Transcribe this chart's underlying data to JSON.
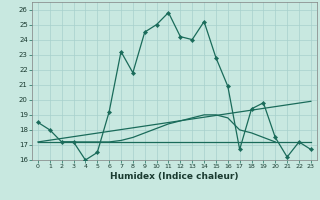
{
  "xlabel": "Humidex (Indice chaleur)",
  "bg_color": "#c8e8e0",
  "grid_color": "#a8d0cc",
  "line_color": "#1a6b5a",
  "xlim": [
    -0.5,
    23.5
  ],
  "ylim": [
    16,
    26.5
  ],
  "xticks": [
    0,
    1,
    2,
    3,
    4,
    5,
    6,
    7,
    8,
    9,
    10,
    11,
    12,
    13,
    14,
    15,
    16,
    17,
    18,
    19,
    20,
    21,
    22,
    23
  ],
  "yticks": [
    16,
    17,
    18,
    19,
    20,
    21,
    22,
    23,
    24,
    25,
    26
  ],
  "line1_x": [
    0,
    1,
    2,
    3,
    4,
    5,
    6,
    7,
    8,
    9,
    10,
    11,
    12,
    13,
    14,
    15,
    16,
    17,
    18,
    19,
    20,
    21,
    22,
    23
  ],
  "line1_y": [
    18.5,
    18.0,
    17.2,
    17.2,
    16.0,
    16.5,
    19.2,
    23.2,
    21.8,
    24.5,
    25.0,
    25.8,
    24.2,
    24.0,
    25.2,
    22.8,
    20.9,
    16.7,
    19.4,
    19.8,
    17.5,
    16.2,
    17.2,
    16.7
  ],
  "line2_x": [
    0,
    23
  ],
  "line2_y": [
    17.2,
    17.2
  ],
  "line3_x": [
    0,
    23
  ],
  "line3_y": [
    17.2,
    19.9
  ],
  "line4_x": [
    2,
    3,
    4,
    5,
    6,
    7,
    8,
    9,
    10,
    11,
    12,
    13,
    14,
    15,
    16,
    17,
    18,
    19,
    20
  ],
  "line4_y": [
    17.2,
    17.2,
    17.2,
    17.2,
    17.2,
    17.3,
    17.5,
    17.8,
    18.1,
    18.4,
    18.6,
    18.8,
    19.0,
    19.0,
    18.8,
    18.0,
    17.8,
    17.5,
    17.2
  ]
}
